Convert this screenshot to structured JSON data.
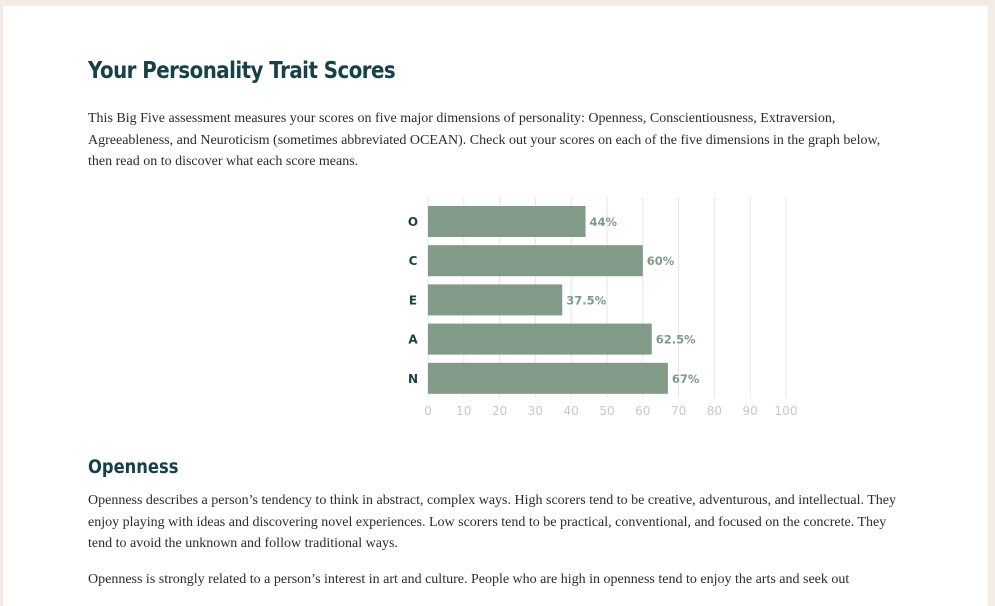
{
  "page": {
    "title": "Your Personality Trait Scores",
    "intro": "This Big Five assessment measures your scores on five major dimensions of personality: Openness, Conscientiousness, Extraversion, Agreeableness, and Neuroticism (sometimes abbreviated OCEAN). Check out your scores on each of the five dimensions in the graph below, then read on to discover what each score means."
  },
  "section": {
    "title": "Openness",
    "paragraph1": "Openness describes a person’s tendency to think in abstract, complex ways. High scorers tend to be creative, adventurous, and intellectual. They enjoy playing with ideas and discovering novel experiences. Low scorers tend to be practical, conventional, and focused on the concrete. They tend to avoid the unknown and follow traditional ways.",
    "paragraph2": "Openness is strongly related to a person’s interest in art and culture. People who are high in openness tend to enjoy the arts and seek out"
  },
  "colors": {
    "bar": "#829a88",
    "value_label": "#7f9a87",
    "category_label": "#1f3f46",
    "tick_label": "#c8c8c8",
    "grid": "#e6e6e6",
    "heading": "#17404a"
  },
  "chart_data": {
    "type": "bar",
    "orientation": "horizontal",
    "categories": [
      "O",
      "C",
      "E",
      "A",
      "N"
    ],
    "values": [
      44,
      60,
      37.5,
      62.5,
      67
    ],
    "value_labels": [
      "44%",
      "60%",
      "37.5%",
      "62.5%",
      "67%"
    ],
    "xlim": [
      0,
      100
    ],
    "xticks": [
      "0",
      "10",
      "20",
      "30",
      "40",
      "50",
      "60",
      "70",
      "80",
      "90",
      "100"
    ],
    "title": "",
    "xlabel": "",
    "ylabel": "",
    "grid": true
  }
}
